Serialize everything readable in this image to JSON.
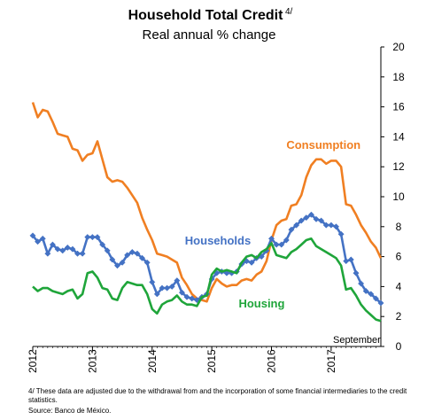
{
  "chart_data": {
    "type": "line",
    "title": "Household Total Credit",
    "title_sup": "4/",
    "subtitle": "Real annual % change",
    "xlabel": "",
    "ylabel": "",
    "ylim": [
      0,
      20
    ],
    "yticks": [
      0,
      2,
      4,
      6,
      8,
      10,
      12,
      14,
      16,
      18,
      20
    ],
    "xlim": [
      2012.0,
      2017.833
    ],
    "xticks": [
      "2012",
      "2013",
      "2014",
      "2015",
      "2016",
      "2017"
    ],
    "grid": false,
    "y_axis_side": "right",
    "annotations": [
      {
        "text": "September"
      }
    ],
    "series": [
      {
        "name": "Consumption",
        "color": "#f07f22",
        "marker": "none",
        "values": [
          16.3,
          15.3,
          15.8,
          15.7,
          15.0,
          14.2,
          14.1,
          14.0,
          13.2,
          13.1,
          12.4,
          12.8,
          12.9,
          13.7,
          12.5,
          11.3,
          11.0,
          11.1,
          11.0,
          10.6,
          10.1,
          9.6,
          8.6,
          7.8,
          7.1,
          6.2,
          6.1,
          6.0,
          5.8,
          5.6,
          4.6,
          4.1,
          3.5,
          3.2,
          3.1,
          3.0,
          3.9,
          4.5,
          4.2,
          4.0,
          4.1,
          4.1,
          4.4,
          4.5,
          4.4,
          4.8,
          5.0,
          5.7,
          7.1,
          8.1,
          8.4,
          8.5,
          9.4,
          9.5,
          10.1,
          11.3,
          12.1,
          12.5,
          12.5,
          12.2,
          12.4,
          12.4,
          12.0,
          9.5,
          9.4,
          8.8,
          8.1,
          7.6,
          7.0,
          6.6,
          5.9,
          5.3,
          5.0
        ],
        "x": [
          2012.0,
          2012.083,
          2012.167,
          2012.25,
          2012.333,
          2012.417,
          2012.5,
          2012.583,
          2012.667,
          2012.75,
          2012.833,
          2012.917,
          2013.0,
          2013.083,
          2013.167,
          2013.25,
          2013.333,
          2013.417,
          2013.5,
          2013.583,
          2013.667,
          2013.75,
          2013.833,
          2013.917,
          2014.0,
          2014.083,
          2014.167,
          2014.25,
          2014.333,
          2014.417,
          2014.5,
          2014.583,
          2014.667,
          2014.75,
          2014.833,
          2014.917,
          2015.0,
          2015.083,
          2015.167,
          2015.25,
          2015.333,
          2015.417,
          2015.5,
          2015.583,
          2015.667,
          2015.75,
          2015.833,
          2015.917,
          2016.0,
          2016.083,
          2016.167,
          2016.25,
          2016.333,
          2016.417,
          2016.5,
          2016.583,
          2016.667,
          2016.75,
          2016.833,
          2016.917,
          2017.0,
          2017.083,
          2017.167,
          2017.25,
          2017.333,
          2017.417,
          2017.5,
          2017.583,
          2017.667,
          2017.75,
          2017.833,
          2017.917,
          2018.0
        ]
      },
      {
        "name": "Households",
        "color": "#4472c4",
        "marker": "diamond",
        "values": [
          7.4,
          7.0,
          7.2,
          6.2,
          6.8,
          6.5,
          6.4,
          6.6,
          6.5,
          6.2,
          6.2,
          7.3,
          7.3,
          7.3,
          6.8,
          6.4,
          5.8,
          5.4,
          5.6,
          6.1,
          6.3,
          6.2,
          5.9,
          5.6,
          4.3,
          3.5,
          3.9,
          3.9,
          4.0,
          4.4,
          3.6,
          3.3,
          3.2,
          3.1,
          3.3,
          3.5,
          4.5,
          4.9,
          5.0,
          4.9,
          4.9,
          5.0,
          5.5,
          5.7,
          5.6,
          5.9,
          6.0,
          6.4,
          7.2,
          6.8,
          6.8,
          7.1,
          7.8,
          8.1,
          8.4,
          8.6,
          8.8,
          8.5,
          8.4,
          8.1,
          8.1,
          8.0,
          7.5,
          5.7,
          5.8,
          4.9,
          4.2,
          3.7,
          3.5,
          3.2,
          2.9,
          2.7,
          2.8
        ],
        "x": [
          2012.0,
          2012.083,
          2012.167,
          2012.25,
          2012.333,
          2012.417,
          2012.5,
          2012.583,
          2012.667,
          2012.75,
          2012.833,
          2012.917,
          2013.0,
          2013.083,
          2013.167,
          2013.25,
          2013.333,
          2013.417,
          2013.5,
          2013.583,
          2013.667,
          2013.75,
          2013.833,
          2013.917,
          2014.0,
          2014.083,
          2014.167,
          2014.25,
          2014.333,
          2014.417,
          2014.5,
          2014.583,
          2014.667,
          2014.75,
          2014.833,
          2014.917,
          2015.0,
          2015.083,
          2015.167,
          2015.25,
          2015.333,
          2015.417,
          2015.5,
          2015.583,
          2015.667,
          2015.75,
          2015.833,
          2015.917,
          2016.0,
          2016.083,
          2016.167,
          2016.25,
          2016.333,
          2016.417,
          2016.5,
          2016.583,
          2016.667,
          2016.75,
          2016.833,
          2016.917,
          2017.0,
          2017.083,
          2017.167,
          2017.25,
          2017.333,
          2017.417,
          2017.5,
          2017.583,
          2017.667,
          2017.75,
          2017.833,
          2017.917,
          2018.0
        ]
      },
      {
        "name": "Housing",
        "color": "#1fa53a",
        "marker": "none",
        "values": [
          4.0,
          3.7,
          3.9,
          3.9,
          3.7,
          3.6,
          3.5,
          3.7,
          3.8,
          3.2,
          3.5,
          4.9,
          5.0,
          4.6,
          3.9,
          3.8,
          3.2,
          3.1,
          3.9,
          4.3,
          4.2,
          4.1,
          4.1,
          3.5,
          2.5,
          2.2,
          2.8,
          3.0,
          3.1,
          3.4,
          3.0,
          2.8,
          2.8,
          2.7,
          3.3,
          3.4,
          4.8,
          5.2,
          5.0,
          5.1,
          5.0,
          4.9,
          5.6,
          6.0,
          6.1,
          5.9,
          6.3,
          6.5,
          6.9,
          6.1,
          6.0,
          5.9,
          6.3,
          6.5,
          6.8,
          7.1,
          7.2,
          6.7,
          6.5,
          6.3,
          6.1,
          5.9,
          5.4,
          3.8,
          3.9,
          3.4,
          2.8,
          2.4,
          2.1,
          1.8,
          1.7,
          1.3,
          1.7
        ],
        "x": [
          2012.0,
          2012.083,
          2012.167,
          2012.25,
          2012.333,
          2012.417,
          2012.5,
          2012.583,
          2012.667,
          2012.75,
          2012.833,
          2012.917,
          2013.0,
          2013.083,
          2013.167,
          2013.25,
          2013.333,
          2013.417,
          2013.5,
          2013.583,
          2013.667,
          2013.75,
          2013.833,
          2013.917,
          2014.0,
          2014.083,
          2014.167,
          2014.25,
          2014.333,
          2014.417,
          2014.5,
          2014.583,
          2014.667,
          2014.75,
          2014.833,
          2014.917,
          2015.0,
          2015.083,
          2015.167,
          2015.25,
          2015.333,
          2015.417,
          2015.5,
          2015.583,
          2015.667,
          2015.75,
          2015.833,
          2015.917,
          2016.0,
          2016.083,
          2016.167,
          2016.25,
          2016.333,
          2016.417,
          2016.5,
          2016.583,
          2016.667,
          2016.75,
          2016.833,
          2016.917,
          2017.0,
          2017.083,
          2017.167,
          2017.25,
          2017.333,
          2017.417,
          2017.5,
          2017.583,
          2017.667,
          2017.75,
          2017.833,
          2017.917,
          2018.0
        ]
      }
    ],
    "footnote": "4/ These data are adjusted due to the withdrawal from and the incorporation of some financial intermediaries to the credit statistics.",
    "source": "Source: Banco de México."
  }
}
